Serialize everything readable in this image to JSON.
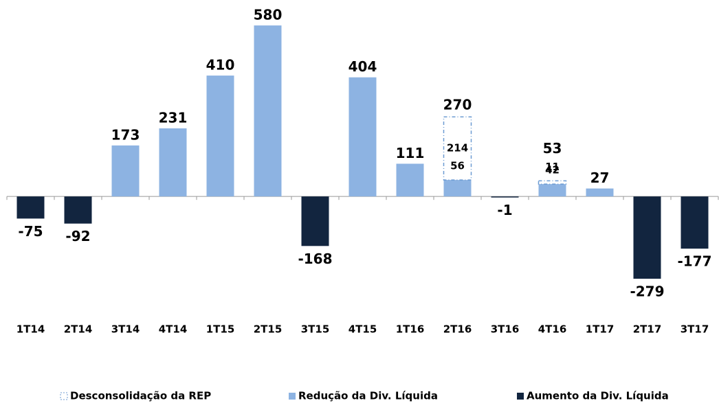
{
  "chart_data": {
    "type": "stacked_bar",
    "categories": [
      "1T14",
      "2T14",
      "3T14",
      "4T14",
      "1T15",
      "2T15",
      "3T15",
      "4T15",
      "1T16",
      "2T16",
      "3T16",
      "4T16",
      "1T17",
      "2T17",
      "3T17"
    ],
    "series": [
      {
        "name": "Desconsolidação da REP",
        "color": "#6c9bd2",
        "style": "dashed",
        "values": [
          null,
          null,
          null,
          null,
          null,
          null,
          null,
          null,
          null,
          214,
          null,
          11,
          null,
          null,
          null
        ]
      },
      {
        "name": "Redução da Div. Líquida",
        "color": "#8db3e2",
        "values": [
          null,
          null,
          173,
          231,
          410,
          580,
          null,
          404,
          111,
          56,
          null,
          42,
          27,
          null,
          null
        ]
      },
      {
        "name": "Aumento da Div. Líquida",
        "color": "#12253f",
        "values": [
          -75,
          -92,
          null,
          null,
          null,
          null,
          -168,
          null,
          null,
          null,
          -1,
          null,
          null,
          -279,
          -177
        ]
      }
    ],
    "totals": [
      null,
      null,
      null,
      null,
      null,
      null,
      null,
      null,
      null,
      270,
      null,
      53,
      null,
      null,
      null
    ],
    "ylim": [
      -300,
      650
    ]
  }
}
